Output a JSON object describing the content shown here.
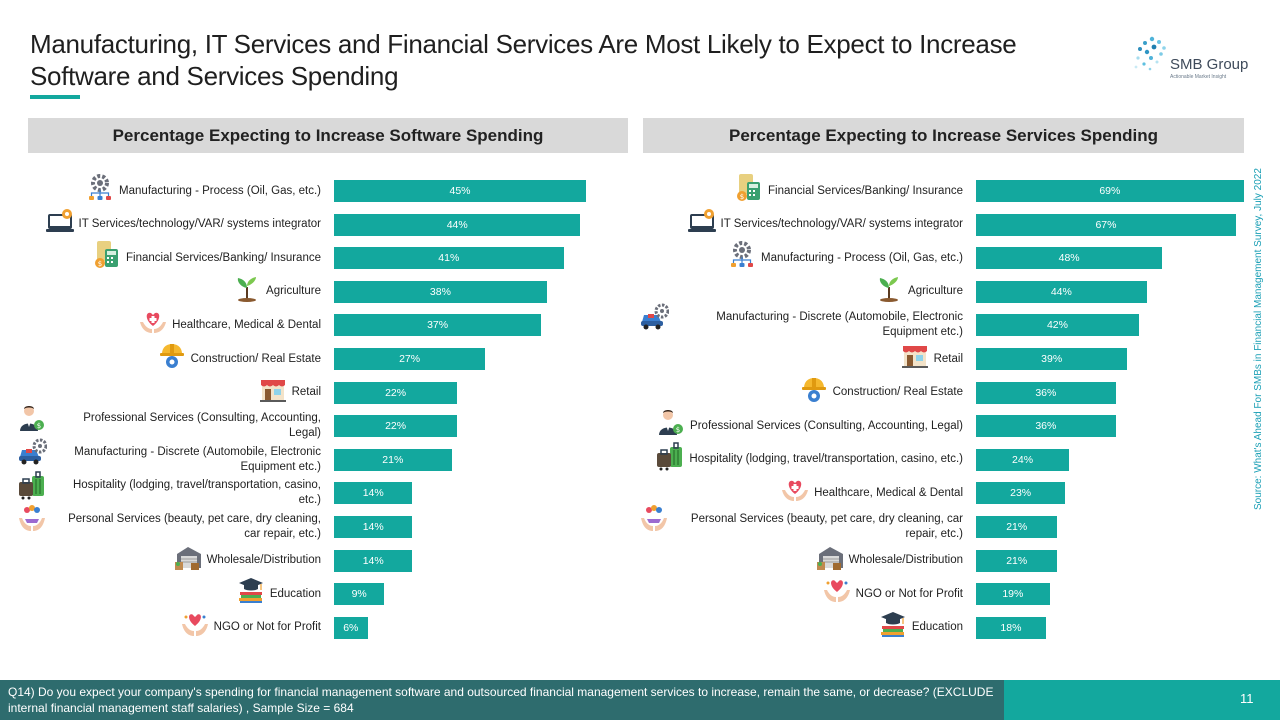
{
  "title": "Manufacturing, IT Services and Financial Services Are Most Likely to Expect to Increase Software and Services Spending",
  "logo": {
    "name": "SMB Group",
    "tagline": "Actionable Market Insight"
  },
  "source": "Source: What's Ahead For SMBs in Financial Management Survey, July 2022",
  "footer": "Q14) Do you expect your company's spending for financial management software and outsourced financial management services to increase, remain the same, or decrease?  (EXCLUDE internal financial management staff salaries) , Sample Size = 684",
  "page_number": "11",
  "colors": {
    "bar": "#13a89e",
    "header_bg": "#d9d9d9",
    "footer_bg": "#2e6c6e",
    "accent": "#13a89e"
  },
  "chart_data": [
    {
      "type": "bar",
      "orientation": "horizontal",
      "title": "Percentage Expecting to Increase Software Spending",
      "xlim": [
        0,
        100
      ],
      "categories": [
        {
          "label": "Manufacturing - Process (Oil, Gas, etc.)",
          "icon": "gear-icon"
        },
        {
          "label": "IT Services/technology/VAR/ systems integrator",
          "icon": "computer-icon"
        },
        {
          "label": "Financial Services/Banking/ Insurance",
          "icon": "calculator-icon"
        },
        {
          "label": "Agriculture",
          "icon": "plant-icon"
        },
        {
          "label": "Healthcare, Medical & Dental",
          "icon": "medical-hands-icon"
        },
        {
          "label": "Construction/ Real Estate",
          "icon": "hard-hat-icon"
        },
        {
          "label": "Retail",
          "icon": "store-icon"
        },
        {
          "label": "Professional Services (Consulting, Accounting, Legal)",
          "icon": "professional-icon"
        },
        {
          "label": "Manufacturing - Discrete (Automobile, Electronic Equipment etc.)",
          "icon": "car-gear-icon"
        },
        {
          "label": "Hospitality (lodging, travel/transportation, casino, etc.)",
          "icon": "luggage-icon"
        },
        {
          "label": "Personal Services (beauty, pet care, dry cleaning, car repair, etc.)",
          "icon": "hands-service-icon"
        },
        {
          "label": "Wholesale/Distribution",
          "icon": "warehouse-icon"
        },
        {
          "label": "Education",
          "icon": "books-icon"
        },
        {
          "label": "NGO or Not for Profit",
          "icon": "heart-hand-icon"
        }
      ],
      "values": [
        45,
        44,
        41,
        38,
        37,
        27,
        22,
        22,
        21,
        14,
        14,
        14,
        9,
        6
      ],
      "value_labels": [
        "45%",
        "44%",
        "41%",
        "38%",
        "37%",
        "27%",
        "22%",
        "22%",
        "21%",
        "14%",
        "14%",
        "14%",
        "9%",
        "6%"
      ]
    },
    {
      "type": "bar",
      "orientation": "horizontal",
      "title": "Percentage Expecting to Increase Services Spending",
      "xlim": [
        0,
        100
      ],
      "categories": [
        {
          "label": "Financial Services/Banking/ Insurance",
          "icon": "calculator-icon"
        },
        {
          "label": "IT Services/technology/VAR/ systems integrator",
          "icon": "computer-icon"
        },
        {
          "label": "Manufacturing - Process (Oil, Gas, etc.)",
          "icon": "gear-icon"
        },
        {
          "label": "Agriculture",
          "icon": "plant-icon"
        },
        {
          "label": "Manufacturing - Discrete (Automobile, Electronic Equipment etc.)",
          "icon": "car-gear-icon"
        },
        {
          "label": "Retail",
          "icon": "store-icon"
        },
        {
          "label": "Construction/ Real Estate",
          "icon": "hard-hat-icon"
        },
        {
          "label": "Professional Services (Consulting, Accounting, Legal)",
          "icon": "professional-icon"
        },
        {
          "label": "Hospitality (lodging, travel/transportation, casino, etc.)",
          "icon": "luggage-icon"
        },
        {
          "label": "Healthcare, Medical & Dental",
          "icon": "medical-hands-icon"
        },
        {
          "label": "Personal Services (beauty, pet care, dry cleaning, car repair, etc.)",
          "icon": "hands-service-icon"
        },
        {
          "label": "Wholesale/Distribution",
          "icon": "warehouse-icon"
        },
        {
          "label": "NGO or Not for Profit",
          "icon": "heart-hand-icon"
        },
        {
          "label": "Education",
          "icon": "books-icon"
        }
      ],
      "values": [
        69,
        67,
        48,
        44,
        42,
        39,
        36,
        36,
        24,
        23,
        21,
        21,
        19,
        18
      ],
      "value_labels": [
        "69%",
        "67%",
        "48%",
        "44%",
        "42%",
        "39%",
        "36%",
        "36%",
        "24%",
        "23%",
        "21%",
        "21%",
        "19%",
        "18%"
      ]
    }
  ]
}
